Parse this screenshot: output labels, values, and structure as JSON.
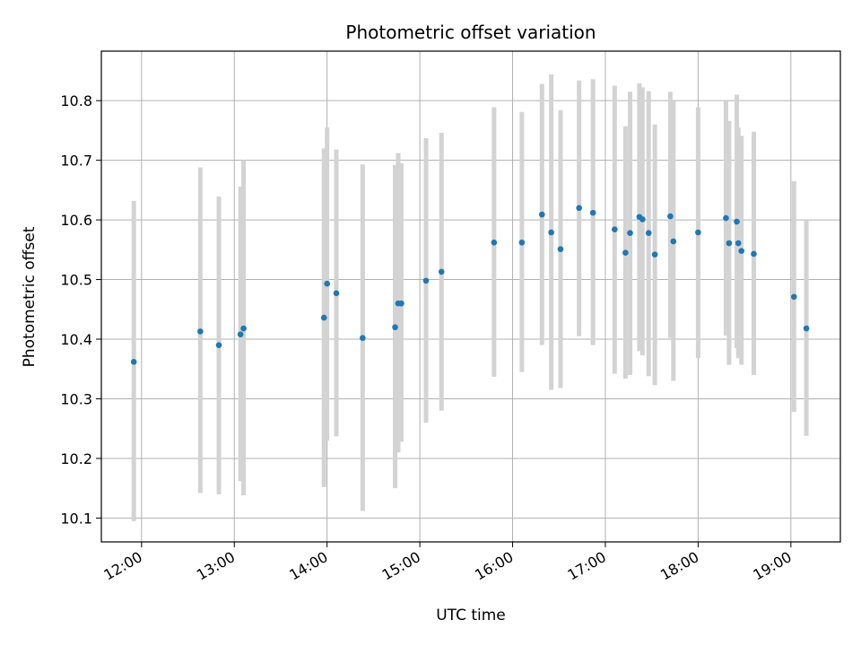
{
  "chart_data": {
    "type": "scatter",
    "title": "Photometric offset variation",
    "xlabel": "UTC time",
    "ylabel": "Photometric offset",
    "x_unit": "UTC hour",
    "xlim": [
      "11:34",
      "19:32"
    ],
    "ylim": [
      10.06,
      10.883
    ],
    "x_ticks": [
      "12:00",
      "13:00",
      "14:00",
      "15:00",
      "16:00",
      "17:00",
      "18:00",
      "19:00"
    ],
    "y_ticks": [
      "10.1",
      "10.2",
      "10.3",
      "10.4",
      "10.5",
      "10.6",
      "10.7",
      "10.8"
    ],
    "grid": true,
    "series": [
      {
        "marker_color": "#1f77b4",
        "errorbar_color": "#d3d3d3",
        "points": [
          {
            "x": "11:55",
            "y": 10.362,
            "lo": 10.095,
            "hi": 10.632
          },
          {
            "x": "12:38",
            "y": 10.413,
            "lo": 10.142,
            "hi": 10.688
          },
          {
            "x": "12:50",
            "y": 10.39,
            "lo": 10.14,
            "hi": 10.639
          },
          {
            "x": "13:04",
            "y": 10.408,
            "lo": 10.162,
            "hi": 10.656
          },
          {
            "x": "13:06",
            "y": 10.418,
            "lo": 10.138,
            "hi": 10.7
          },
          {
            "x": "13:58",
            "y": 10.436,
            "lo": 10.152,
            "hi": 10.72
          },
          {
            "x": "14:00",
            "y": 10.493,
            "lo": 10.23,
            "hi": 10.755
          },
          {
            "x": "14:06",
            "y": 10.477,
            "lo": 10.237,
            "hi": 10.718
          },
          {
            "x": "14:23",
            "y": 10.402,
            "lo": 10.112,
            "hi": 10.693
          },
          {
            "x": "14:44",
            "y": 10.42,
            "lo": 10.15,
            "hi": 10.692
          },
          {
            "x": "14:46",
            "y": 10.46,
            "lo": 10.21,
            "hi": 10.712
          },
          {
            "x": "14:48",
            "y": 10.46,
            "lo": 10.228,
            "hi": 10.695
          },
          {
            "x": "15:04",
            "y": 10.498,
            "lo": 10.26,
            "hi": 10.737
          },
          {
            "x": "15:14",
            "y": 10.513,
            "lo": 10.28,
            "hi": 10.746
          },
          {
            "x": "15:48",
            "y": 10.562,
            "lo": 10.337,
            "hi": 10.789
          },
          {
            "x": "16:06",
            "y": 10.562,
            "lo": 10.345,
            "hi": 10.781
          },
          {
            "x": "16:19",
            "y": 10.609,
            "lo": 10.39,
            "hi": 10.828
          },
          {
            "x": "16:25",
            "y": 10.579,
            "lo": 10.315,
            "hi": 10.844
          },
          {
            "x": "16:31",
            "y": 10.551,
            "lo": 10.318,
            "hi": 10.784
          },
          {
            "x": "16:43",
            "y": 10.62,
            "lo": 10.405,
            "hi": 10.834
          },
          {
            "x": "16:52",
            "y": 10.612,
            "lo": 10.39,
            "hi": 10.836
          },
          {
            "x": "17:06",
            "y": 10.584,
            "lo": 10.342,
            "hi": 10.825
          },
          {
            "x": "17:13",
            "y": 10.545,
            "lo": 10.334,
            "hi": 10.757
          },
          {
            "x": "17:16",
            "y": 10.578,
            "lo": 10.34,
            "hi": 10.815
          },
          {
            "x": "17:22",
            "y": 10.605,
            "lo": 10.38,
            "hi": 10.829
          },
          {
            "x": "17:24",
            "y": 10.601,
            "lo": 10.373,
            "hi": 10.822
          },
          {
            "x": "17:28",
            "y": 10.578,
            "lo": 10.338,
            "hi": 10.816
          },
          {
            "x": "17:32",
            "y": 10.542,
            "lo": 10.323,
            "hi": 10.76
          },
          {
            "x": "17:42",
            "y": 10.606,
            "lo": 10.402,
            "hi": 10.815
          },
          {
            "x": "17:44",
            "y": 10.564,
            "lo": 10.33,
            "hi": 10.799
          },
          {
            "x": "18:00",
            "y": 10.579,
            "lo": 10.368,
            "hi": 10.789
          },
          {
            "x": "18:18",
            "y": 10.603,
            "lo": 10.406,
            "hi": 10.8
          },
          {
            "x": "18:20",
            "y": 10.561,
            "lo": 10.357,
            "hi": 10.766
          },
          {
            "x": "18:25",
            "y": 10.597,
            "lo": 10.385,
            "hi": 10.81
          },
          {
            "x": "18:26",
            "y": 10.561,
            "lo": 10.368,
            "hi": 10.755
          },
          {
            "x": "18:28",
            "y": 10.548,
            "lo": 10.357,
            "hi": 10.741
          },
          {
            "x": "18:36",
            "y": 10.543,
            "lo": 10.34,
            "hi": 10.748
          },
          {
            "x": "19:02",
            "y": 10.471,
            "lo": 10.278,
            "hi": 10.665
          },
          {
            "x": "19:10",
            "y": 10.418,
            "lo": 10.238,
            "hi": 10.6
          }
        ]
      }
    ]
  }
}
